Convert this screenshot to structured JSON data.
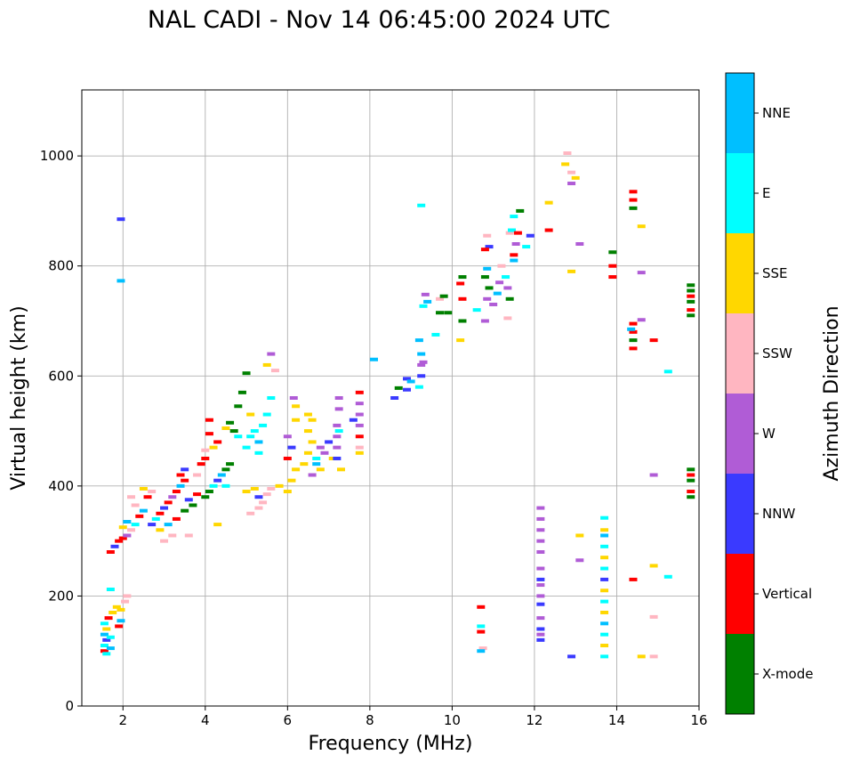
{
  "chart_data": {
    "type": "scatter",
    "title": "NAL CADI - Nov 14 06:45:00 2024 UTC",
    "xlabel": "Frequency (MHz)",
    "ylabel": "Virtual height (km)",
    "xlim": [
      1,
      16
    ],
    "ylim": [
      0,
      1120
    ],
    "xticks": [
      2,
      4,
      6,
      8,
      10,
      12,
      14,
      16
    ],
    "yticks": [
      0,
      200,
      400,
      600,
      800,
      1000
    ],
    "grid": true,
    "colorbar": {
      "label": "Azimuth Direction",
      "categories": [
        {
          "name": "X-mode",
          "color": "#008000"
        },
        {
          "name": "Vertical",
          "color": "#ff0000"
        },
        {
          "name": "NNW",
          "color": "#3a3aff"
        },
        {
          "name": "W",
          "color": "#b05cd6"
        },
        {
          "name": "SSW",
          "color": "#ffb6c1"
        },
        {
          "name": "SSE",
          "color": "#ffd700"
        },
        {
          "name": "E",
          "color": "#00ffff"
        },
        {
          "name": "NNE",
          "color": "#00bfff"
        }
      ]
    },
    "points": [
      [
        1.55,
        100,
        "Vertical"
      ],
      [
        1.55,
        110,
        "E"
      ],
      [
        1.6,
        120,
        "NNW"
      ],
      [
        1.55,
        130,
        "NNE"
      ],
      [
        1.6,
        140,
        "SSE"
      ],
      [
        1.55,
        150,
        "E"
      ],
      [
        1.65,
        160,
        "Vertical"
      ],
      [
        1.6,
        95,
        "E"
      ],
      [
        1.7,
        105,
        "NNE"
      ],
      [
        1.75,
        170,
        "SSE"
      ],
      [
        1.85,
        180,
        "SSE"
      ],
      [
        1.95,
        175,
        "SSE"
      ],
      [
        2.05,
        190,
        "SSW"
      ],
      [
        2.1,
        200,
        "SSW"
      ],
      [
        1.9,
        145,
        "Vertical"
      ],
      [
        1.95,
        155,
        "NNE"
      ],
      [
        1.7,
        125,
        "E"
      ],
      [
        1.7,
        212,
        "E"
      ],
      [
        1.95,
        885,
        "NNW"
      ],
      [
        1.95,
        773,
        "NNE"
      ],
      [
        1.7,
        280,
        "Vertical"
      ],
      [
        1.8,
        290,
        "NNW"
      ],
      [
        1.9,
        300,
        "Vertical"
      ],
      [
        2.0,
        305,
        "Vertical"
      ],
      [
        2.1,
        310,
        "W"
      ],
      [
        2.2,
        320,
        "SSW"
      ],
      [
        2.3,
        330,
        "E"
      ],
      [
        2.4,
        345,
        "Vertical"
      ],
      [
        2.5,
        355,
        "NNE"
      ],
      [
        2.3,
        365,
        "SSW"
      ],
      [
        2.2,
        380,
        "SSW"
      ],
      [
        2.6,
        380,
        "Vertical"
      ],
      [
        2.7,
        390,
        "SSW"
      ],
      [
        2.5,
        395,
        "SSE"
      ],
      [
        2.0,
        325,
        "SSE"
      ],
      [
        2.1,
        335,
        "NNE"
      ],
      [
        2.7,
        330,
        "NNW"
      ],
      [
        2.8,
        340,
        "E"
      ],
      [
        2.9,
        350,
        "Vertical"
      ],
      [
        3.0,
        360,
        "NNW"
      ],
      [
        3.1,
        370,
        "Vertical"
      ],
      [
        3.2,
        380,
        "W"
      ],
      [
        3.3,
        390,
        "Vertical"
      ],
      [
        3.4,
        400,
        "NNE"
      ],
      [
        3.5,
        410,
        "Vertical"
      ],
      [
        3.0,
        300,
        "SSW"
      ],
      [
        3.2,
        310,
        "SSW"
      ],
      [
        3.6,
        310,
        "SSW"
      ],
      [
        2.9,
        320,
        "SSE"
      ],
      [
        3.1,
        330,
        "NNE"
      ],
      [
        3.3,
        340,
        "Vertical"
      ],
      [
        3.5,
        355,
        "X-mode"
      ],
      [
        3.7,
        365,
        "X-mode"
      ],
      [
        3.6,
        375,
        "NNW"
      ],
      [
        3.8,
        385,
        "Vertical"
      ],
      [
        3.4,
        420,
        "Vertical"
      ],
      [
        3.5,
        430,
        "NNW"
      ],
      [
        3.8,
        420,
        "SSW"
      ],
      [
        3.9,
        440,
        "Vertical"
      ],
      [
        4.0,
        450,
        "Vertical"
      ],
      [
        4.0,
        380,
        "X-mode"
      ],
      [
        4.1,
        390,
        "X-mode"
      ],
      [
        4.2,
        400,
        "E"
      ],
      [
        4.3,
        410,
        "NNW"
      ],
      [
        4.4,
        420,
        "NNE"
      ],
      [
        4.5,
        430,
        "X-mode"
      ],
      [
        4.6,
        440,
        "X-mode"
      ],
      [
        4.1,
        495,
        "Vertical"
      ],
      [
        4.1,
        520,
        "Vertical"
      ],
      [
        4.0,
        465,
        "SSW"
      ],
      [
        4.2,
        470,
        "SSE"
      ],
      [
        4.3,
        480,
        "Vertical"
      ],
      [
        4.5,
        505,
        "SSE"
      ],
      [
        4.6,
        515,
        "X-mode"
      ],
      [
        4.7,
        500,
        "X-mode"
      ],
      [
        4.8,
        490,
        "E"
      ],
      [
        4.3,
        330,
        "SSE"
      ],
      [
        4.5,
        400,
        "E"
      ],
      [
        4.8,
        545,
        "X-mode"
      ],
      [
        4.9,
        570,
        "X-mode"
      ],
      [
        5.0,
        605,
        "X-mode"
      ],
      [
        5.0,
        470,
        "E"
      ],
      [
        5.1,
        490,
        "E"
      ],
      [
        5.2,
        500,
        "E"
      ],
      [
        5.3,
        480,
        "NNE"
      ],
      [
        5.4,
        510,
        "E"
      ],
      [
        5.5,
        530,
        "E"
      ],
      [
        5.6,
        560,
        "E"
      ],
      [
        5.5,
        620,
        "SSE"
      ],
      [
        5.6,
        640,
        "W"
      ],
      [
        5.7,
        610,
        "SSW"
      ],
      [
        5.3,
        460,
        "E"
      ],
      [
        5.1,
        530,
        "SSE"
      ],
      [
        5.0,
        390,
        "SSE"
      ],
      [
        5.2,
        395,
        "SSE"
      ],
      [
        5.3,
        380,
        "NNW"
      ],
      [
        5.4,
        370,
        "SSW"
      ],
      [
        5.5,
        385,
        "SSW"
      ],
      [
        5.6,
        395,
        "SSW"
      ],
      [
        5.8,
        400,
        "SSE"
      ],
      [
        5.1,
        350,
        "SSW"
      ],
      [
        5.3,
        360,
        "SSW"
      ],
      [
        6.0,
        390,
        "SSE"
      ],
      [
        6.1,
        410,
        "SSE"
      ],
      [
        6.2,
        430,
        "SSE"
      ],
      [
        6.0,
        450,
        "Vertical"
      ],
      [
        6.1,
        470,
        "NNW"
      ],
      [
        6.0,
        490,
        "W"
      ],
      [
        6.2,
        520,
        "SSE"
      ],
      [
        6.2,
        545,
        "SSE"
      ],
      [
        6.15,
        560,
        "W"
      ],
      [
        6.4,
        440,
        "SSE"
      ],
      [
        6.5,
        460,
        "SSE"
      ],
      [
        6.6,
        480,
        "SSE"
      ],
      [
        6.5,
        500,
        "SSE"
      ],
      [
        6.6,
        520,
        "SSE"
      ],
      [
        6.5,
        530,
        "SSE"
      ],
      [
        6.7,
        450,
        "E"
      ],
      [
        6.8,
        430,
        "SSE"
      ],
      [
        6.9,
        460,
        "W"
      ],
      [
        6.6,
        420,
        "W"
      ],
      [
        6.7,
        440,
        "NNE"
      ],
      [
        6.8,
        470,
        "W"
      ],
      [
        7.0,
        480,
        "NNW"
      ],
      [
        7.1,
        450,
        "SSE"
      ],
      [
        7.2,
        470,
        "W"
      ],
      [
        7.2,
        490,
        "W"
      ],
      [
        7.2,
        510,
        "W"
      ],
      [
        7.25,
        540,
        "W"
      ],
      [
        7.25,
        560,
        "W"
      ],
      [
        7.2,
        450,
        "NNW"
      ],
      [
        7.3,
        430,
        "SSE"
      ],
      [
        7.25,
        500,
        "E"
      ],
      [
        7.75,
        470,
        "SSW"
      ],
      [
        7.75,
        490,
        "Vertical"
      ],
      [
        7.75,
        510,
        "W"
      ],
      [
        7.75,
        530,
        "W"
      ],
      [
        7.75,
        550,
        "W"
      ],
      [
        7.75,
        570,
        "Vertical"
      ],
      [
        7.75,
        460,
        "SSE"
      ],
      [
        7.6,
        520,
        "NNW"
      ],
      [
        8.1,
        630,
        "NNE"
      ],
      [
        8.6,
        560,
        "NNW"
      ],
      [
        8.7,
        578,
        "X-mode"
      ],
      [
        8.9,
        575,
        "NNW"
      ],
      [
        8.9,
        595,
        "NNW"
      ],
      [
        9.0,
        590,
        "NNE"
      ],
      [
        9.2,
        580,
        "E"
      ],
      [
        9.25,
        600,
        "NNW"
      ],
      [
        9.25,
        620,
        "W"
      ],
      [
        9.25,
        640,
        "NNE"
      ],
      [
        9.2,
        665,
        "NNE"
      ],
      [
        9.3,
        625,
        "W"
      ],
      [
        9.35,
        748,
        "W"
      ],
      [
        9.25,
        910,
        "E"
      ],
      [
        9.4,
        735,
        "NNE"
      ],
      [
        9.7,
        740,
        "SSW"
      ],
      [
        9.8,
        745,
        "X-mode"
      ],
      [
        9.9,
        715,
        "X-mode"
      ],
      [
        9.7,
        715,
        "X-mode"
      ],
      [
        9.6,
        675,
        "E"
      ],
      [
        9.3,
        727,
        "E"
      ],
      [
        10.2,
        665,
        "SSE"
      ],
      [
        10.25,
        700,
        "X-mode"
      ],
      [
        10.25,
        740,
        "Vertical"
      ],
      [
        10.2,
        768,
        "Vertical"
      ],
      [
        10.25,
        780,
        "X-mode"
      ],
      [
        10.6,
        720,
        "E"
      ],
      [
        10.7,
        180,
        "Vertical"
      ],
      [
        10.7,
        145,
        "E"
      ],
      [
        10.7,
        135,
        "Vertical"
      ],
      [
        10.75,
        105,
        "SSW"
      ],
      [
        10.7,
        100,
        "NNE"
      ],
      [
        10.8,
        700,
        "W"
      ],
      [
        10.85,
        740,
        "W"
      ],
      [
        10.9,
        760,
        "X-mode"
      ],
      [
        10.8,
        780,
        "X-mode"
      ],
      [
        10.85,
        795,
        "NNE"
      ],
      [
        10.9,
        835,
        "NNW"
      ],
      [
        10.8,
        830,
        "Vertical"
      ],
      [
        10.85,
        855,
        "SSW"
      ],
      [
        11.0,
        730,
        "W"
      ],
      [
        11.1,
        750,
        "NNE"
      ],
      [
        11.15,
        770,
        "W"
      ],
      [
        11.2,
        800,
        "SSW"
      ],
      [
        11.3,
        780,
        "E"
      ],
      [
        11.35,
        760,
        "W"
      ],
      [
        11.4,
        740,
        "X-mode"
      ],
      [
        11.35,
        705,
        "SSW"
      ],
      [
        11.4,
        860,
        "SSW"
      ],
      [
        11.5,
        810,
        "NNE"
      ],
      [
        11.45,
        865,
        "E"
      ],
      [
        11.5,
        890,
        "E"
      ],
      [
        11.5,
        820,
        "Vertical"
      ],
      [
        11.55,
        840,
        "W"
      ],
      [
        11.6,
        860,
        "Vertical"
      ],
      [
        11.65,
        900,
        "X-mode"
      ],
      [
        11.9,
        855,
        "NNW"
      ],
      [
        11.8,
        835,
        "E"
      ],
      [
        12.15,
        120,
        "NNW"
      ],
      [
        12.15,
        130,
        "W"
      ],
      [
        12.15,
        140,
        "NNW"
      ],
      [
        12.15,
        160,
        "W"
      ],
      [
        12.15,
        200,
        "W"
      ],
      [
        12.15,
        220,
        "W"
      ],
      [
        12.15,
        250,
        "W"
      ],
      [
        12.15,
        280,
        "W"
      ],
      [
        12.15,
        300,
        "W"
      ],
      [
        12.15,
        320,
        "W"
      ],
      [
        12.15,
        340,
        "W"
      ],
      [
        12.15,
        360,
        "W"
      ],
      [
        12.15,
        185,
        "NNW"
      ],
      [
        12.15,
        230,
        "NNW"
      ],
      [
        12.35,
        865,
        "Vertical"
      ],
      [
        12.35,
        915,
        "SSE"
      ],
      [
        12.8,
        1005,
        "SSW"
      ],
      [
        12.75,
        985,
        "SSE"
      ],
      [
        12.9,
        970,
        "SSW"
      ],
      [
        13.0,
        960,
        "SSE"
      ],
      [
        12.9,
        950,
        "W"
      ],
      [
        13.1,
        840,
        "W"
      ],
      [
        12.9,
        790,
        "SSE"
      ],
      [
        12.9,
        90,
        "NNW"
      ],
      [
        13.1,
        310,
        "SSE"
      ],
      [
        13.1,
        265,
        "W"
      ],
      [
        13.7,
        90,
        "E"
      ],
      [
        13.7,
        110,
        "SSE"
      ],
      [
        13.7,
        130,
        "E"
      ],
      [
        13.7,
        150,
        "NNE"
      ],
      [
        13.7,
        170,
        "SSE"
      ],
      [
        13.7,
        190,
        "E"
      ],
      [
        13.7,
        210,
        "SSE"
      ],
      [
        13.7,
        230,
        "NNW"
      ],
      [
        13.7,
        250,
        "E"
      ],
      [
        13.7,
        270,
        "SSE"
      ],
      [
        13.7,
        290,
        "E"
      ],
      [
        13.7,
        310,
        "NNE"
      ],
      [
        13.7,
        320,
        "SSE"
      ],
      [
        13.7,
        342,
        "E"
      ],
      [
        13.9,
        825,
        "X-mode"
      ],
      [
        13.9,
        800,
        "Vertical"
      ],
      [
        13.9,
        780,
        "Vertical"
      ],
      [
        14.4,
        650,
        "Vertical"
      ],
      [
        14.4,
        665,
        "X-mode"
      ],
      [
        14.4,
        680,
        "Vertical"
      ],
      [
        14.4,
        695,
        "Vertical"
      ],
      [
        14.35,
        685,
        "NNE"
      ],
      [
        14.4,
        905,
        "X-mode"
      ],
      [
        14.4,
        920,
        "Vertical"
      ],
      [
        14.4,
        935,
        "Vertical"
      ],
      [
        14.4,
        230,
        "Vertical"
      ],
      [
        14.6,
        702,
        "W"
      ],
      [
        14.6,
        788,
        "W"
      ],
      [
        14.6,
        872,
        "SSE"
      ],
      [
        14.6,
        90,
        "SSE"
      ],
      [
        14.9,
        665,
        "Vertical"
      ],
      [
        14.9,
        420,
        "W"
      ],
      [
        14.9,
        255,
        "SSE"
      ],
      [
        14.9,
        162,
        "SSW"
      ],
      [
        14.9,
        90,
        "SSW"
      ],
      [
        15.25,
        608,
        "E"
      ],
      [
        15.25,
        235,
        "E"
      ],
      [
        15.8,
        380,
        "X-mode"
      ],
      [
        15.8,
        390,
        "Vertical"
      ],
      [
        15.8,
        410,
        "X-mode"
      ],
      [
        15.8,
        420,
        "Vertical"
      ],
      [
        15.8,
        430,
        "X-mode"
      ],
      [
        15.8,
        710,
        "X-mode"
      ],
      [
        15.8,
        720,
        "Vertical"
      ],
      [
        15.8,
        735,
        "X-mode"
      ],
      [
        15.8,
        745,
        "Vertical"
      ],
      [
        15.8,
        755,
        "X-mode"
      ],
      [
        15.8,
        765,
        "X-mode"
      ]
    ]
  }
}
